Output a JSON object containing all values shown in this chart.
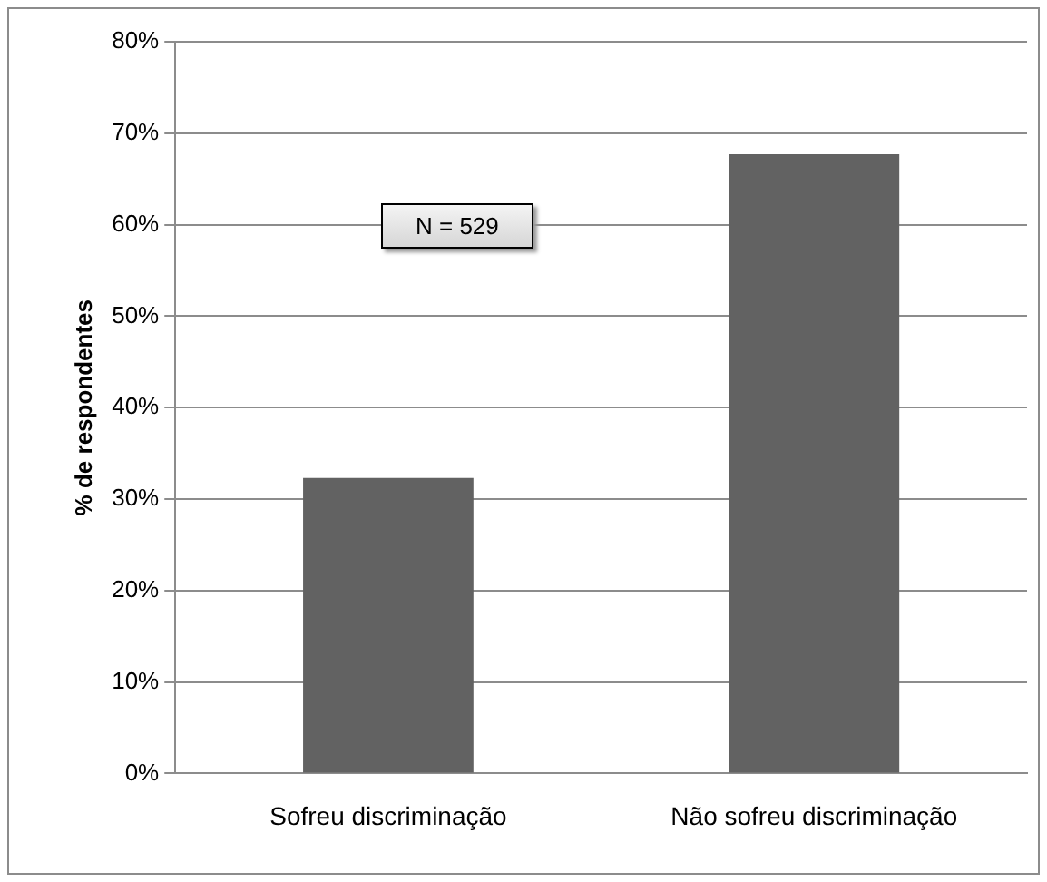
{
  "chart_data": {
    "type": "bar",
    "ylabel": "% de respondentes",
    "categories": [
      "Sofreu discriminação",
      "Não sofreu discriminação"
    ],
    "values": [
      32.3,
      67.7
    ],
    "color": "#626262",
    "ylim": [
      0,
      80
    ],
    "yticks": [
      {
        "value": 0,
        "label": "0%"
      },
      {
        "value": 10,
        "label": "10%"
      },
      {
        "value": 20,
        "label": "20%"
      },
      {
        "value": 30,
        "label": "30%"
      },
      {
        "value": 40,
        "label": "40%"
      },
      {
        "value": 50,
        "label": "50%"
      },
      {
        "value": 60,
        "label": "60%"
      },
      {
        "value": 70,
        "label": "70%"
      },
      {
        "value": 80,
        "label": "80%"
      }
    ],
    "grid": "y",
    "legend": false,
    "annotations": [
      "N = 529"
    ]
  }
}
